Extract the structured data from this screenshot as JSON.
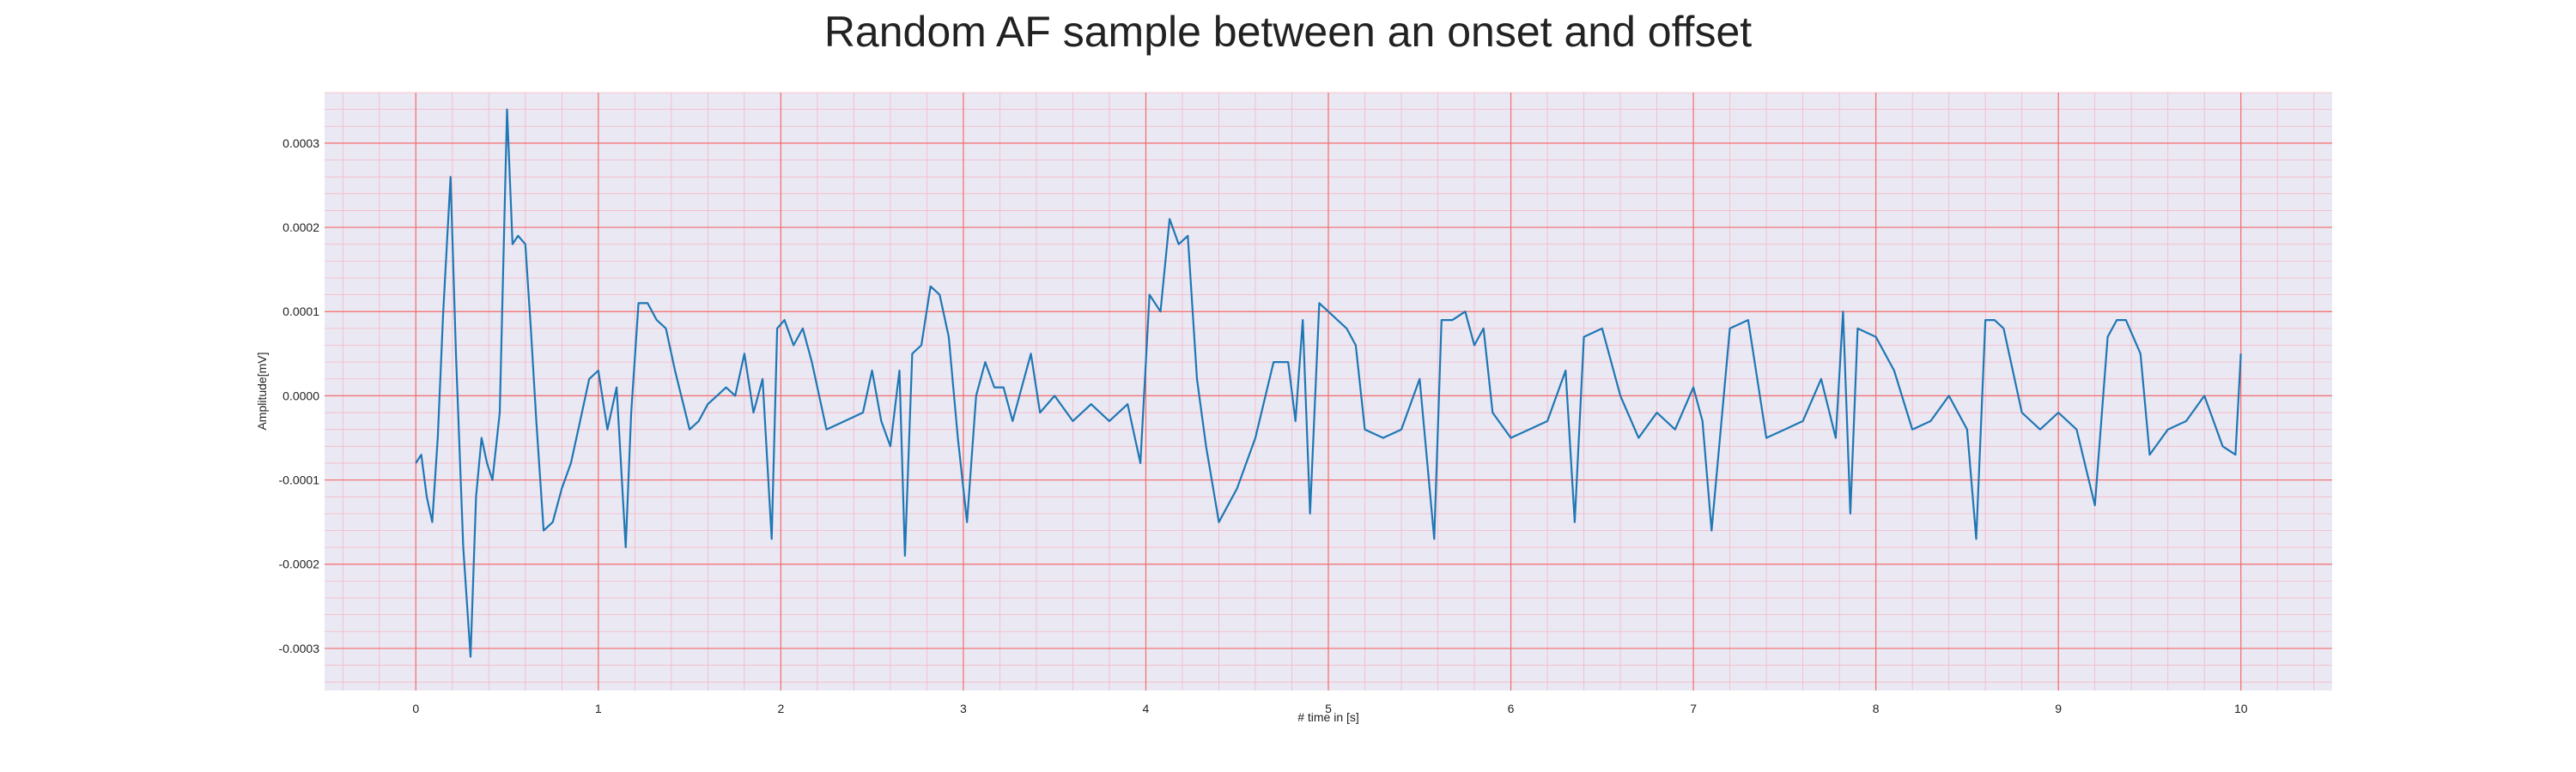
{
  "chart_data": {
    "type": "line",
    "title": "Random AF sample between an onset and offset",
    "xlabel": "# time in [s]",
    "ylabel": "Amplitude[mV]",
    "xlim": [
      -0.5,
      10.5
    ],
    "ylim": [
      -0.00035,
      0.00036
    ],
    "xticks": [
      0,
      1,
      2,
      3,
      4,
      5,
      6,
      7,
      8,
      9,
      10
    ],
    "xtick_labels": [
      "0",
      "1",
      "2",
      "3",
      "4",
      "5",
      "6",
      "7",
      "8",
      "9",
      "10"
    ],
    "yticks": [
      -0.0003,
      -0.0002,
      -0.0001,
      0.0,
      0.0001,
      0.0002,
      0.0003
    ],
    "ytick_labels": [
      "-0.0003",
      "-0.0002",
      "-0.0001",
      "0.0000",
      "0.0001",
      "0.0002",
      "0.0003"
    ],
    "grid": true,
    "colors": {
      "line": "#1f77b4",
      "background": "#eae8f3",
      "major_grid": "#f26b6b",
      "minor_grid": "#f5b8c4"
    },
    "series": [
      {
        "x": [
          0.0,
          0.03,
          0.06,
          0.09,
          0.12,
          0.15,
          0.19,
          0.22,
          0.26,
          0.3,
          0.33,
          0.36,
          0.39,
          0.42,
          0.46,
          0.5,
          0.53,
          0.56,
          0.6,
          0.63,
          0.66,
          0.7,
          0.75,
          0.8,
          0.85,
          0.9,
          0.95,
          1.0,
          1.05,
          1.1,
          1.15,
          1.18,
          1.22,
          1.27,
          1.32,
          1.37,
          1.42,
          1.5,
          1.55,
          1.6,
          1.65,
          1.7,
          1.75,
          1.8,
          1.85,
          1.9,
          1.95,
          1.98,
          2.02,
          2.07,
          2.12,
          2.17,
          2.25,
          2.35,
          2.45,
          2.5,
          2.55,
          2.6,
          2.65,
          2.68,
          2.72,
          2.77,
          2.82,
          2.87,
          2.92,
          2.97,
          3.02,
          3.07,
          3.12,
          3.17,
          3.22,
          3.27,
          3.32,
          3.37,
          3.42,
          3.5,
          3.6,
          3.7,
          3.8,
          3.9,
          3.97,
          4.02,
          4.08,
          4.13,
          4.18,
          4.23,
          4.28,
          4.33,
          4.4,
          4.5,
          4.6,
          4.7,
          4.78,
          4.82,
          4.86,
          4.9,
          4.95,
          5.0,
          5.05,
          5.1,
          5.15,
          5.2,
          5.3,
          5.4,
          5.5,
          5.58,
          5.62,
          5.68,
          5.75,
          5.8,
          5.85,
          5.9,
          6.0,
          6.1,
          6.2,
          6.3,
          6.35,
          6.4,
          6.5,
          6.6,
          6.7,
          6.8,
          6.9,
          7.0,
          7.05,
          7.1,
          7.2,
          7.3,
          7.4,
          7.5,
          7.6,
          7.7,
          7.78,
          7.82,
          7.86,
          7.9,
          8.0,
          8.1,
          8.2,
          8.3,
          8.4,
          8.5,
          8.55,
          8.6,
          8.65,
          8.7,
          8.8,
          8.9,
          9.0,
          9.1,
          9.2,
          9.27,
          9.32,
          9.37,
          9.45,
          9.5,
          9.6,
          9.7,
          9.8,
          9.9,
          9.97,
          10.0
        ],
        "y": [
          -8e-05,
          -7e-05,
          -0.00012,
          -0.00015,
          -5e-05,
          0.0001,
          0.00026,
          5e-05,
          -0.00018,
          -0.00031,
          -0.00012,
          -5e-05,
          -8e-05,
          -0.0001,
          -2e-05,
          0.00034,
          0.00018,
          0.00019,
          0.00018,
          8e-05,
          -3e-05,
          -0.00016,
          -0.00015,
          -0.00011,
          -8e-05,
          -3e-05,
          2e-05,
          3e-05,
          -4e-05,
          1e-05,
          -0.00018,
          -2e-05,
          0.00011,
          0.00011,
          9e-05,
          8e-05,
          3e-05,
          -4e-05,
          -3e-05,
          -1e-05,
          0.0,
          1e-05,
          0.0,
          5e-05,
          -2e-05,
          2e-05,
          -0.00017,
          8e-05,
          9e-05,
          6e-05,
          8e-05,
          4e-05,
          -4e-05,
          -3e-05,
          -2e-05,
          3e-05,
          -3e-05,
          -6e-05,
          3e-05,
          -0.00019,
          5e-05,
          6e-05,
          0.00013,
          0.00012,
          7e-05,
          -5e-05,
          -0.00015,
          0.0,
          4e-05,
          1e-05,
          1e-05,
          -3e-05,
          1e-05,
          5e-05,
          -2e-05,
          0.0,
          -3e-05,
          -1e-05,
          -3e-05,
          -1e-05,
          -8e-05,
          0.00012,
          0.0001,
          0.00021,
          0.00018,
          0.00019,
          2e-05,
          -6e-05,
          -0.00015,
          -0.00011,
          -5e-05,
          4e-05,
          4e-05,
          -3e-05,
          9e-05,
          -0.00014,
          0.00011,
          0.0001,
          9e-05,
          8e-05,
          6e-05,
          -4e-05,
          -5e-05,
          -4e-05,
          2e-05,
          -0.00017,
          9e-05,
          9e-05,
          0.0001,
          6e-05,
          8e-05,
          -2e-05,
          -5e-05,
          -4e-05,
          -3e-05,
          3e-05,
          -0.00015,
          7e-05,
          8e-05,
          0.0,
          -5e-05,
          -2e-05,
          -4e-05,
          1e-05,
          -3e-05,
          -0.00016,
          8e-05,
          9e-05,
          -5e-05,
          -4e-05,
          -3e-05,
          2e-05,
          -5e-05,
          0.0001,
          -0.00014,
          8e-05,
          7e-05,
          3e-05,
          -4e-05,
          -3e-05,
          0.0,
          -4e-05,
          -0.00017,
          9e-05,
          9e-05,
          8e-05,
          -2e-05,
          -4e-05,
          -2e-05,
          -4e-05,
          -0.00013,
          7e-05,
          9e-05,
          9e-05,
          5e-05,
          -7e-05,
          -4e-05,
          -3e-05,
          0.0,
          -6e-05,
          -7e-05,
          5e-05
        ]
      }
    ]
  }
}
